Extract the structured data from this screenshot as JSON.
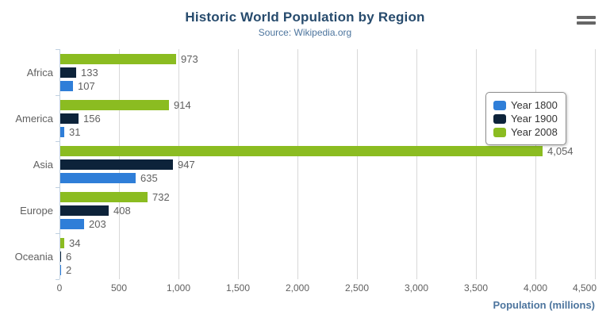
{
  "header": {
    "title": "Historic World Population by Region",
    "subtitle": "Source: Wikipedia.org"
  },
  "toolbar": {
    "menu_icon": "hamburger"
  },
  "chart_data": {
    "type": "bar",
    "orientation": "horizontal",
    "title": "Historic World Population by Region",
    "subtitle": "Source: Wikipedia.org",
    "categories": [
      "Africa",
      "America",
      "Asia",
      "Europe",
      "Oceania"
    ],
    "series": [
      {
        "name": "Year 1800",
        "color": "#2f7ed8",
        "values": [
          107,
          31,
          635,
          203,
          2
        ]
      },
      {
        "name": "Year 1900",
        "color": "#0d233a",
        "values": [
          133,
          156,
          947,
          408,
          6
        ]
      },
      {
        "name": "Year 2008",
        "color": "#8bbc21",
        "values": [
          973,
          914,
          4054,
          732,
          34
        ]
      }
    ],
    "series_display_order_top_to_bottom": [
      "Year 2008",
      "Year 1900",
      "Year 1800"
    ],
    "data_labels": true,
    "xlabel": "Population (millions)",
    "xlim": [
      0,
      4500
    ],
    "xtick_labels": [
      "0",
      "500",
      "1,000",
      "1,500",
      "2,000",
      "2,500",
      "3,000",
      "3,500",
      "4,000",
      "4,500"
    ],
    "grid": true,
    "legend_position": "right",
    "colors": {
      "title": "#274b6d",
      "subtitle": "#4d759e",
      "axis_title": "#4d759e",
      "text_labels": "#606060",
      "gridline": "#d8d8d8",
      "axis_line": "#c0d0e0",
      "legend_border": "#909090"
    }
  }
}
